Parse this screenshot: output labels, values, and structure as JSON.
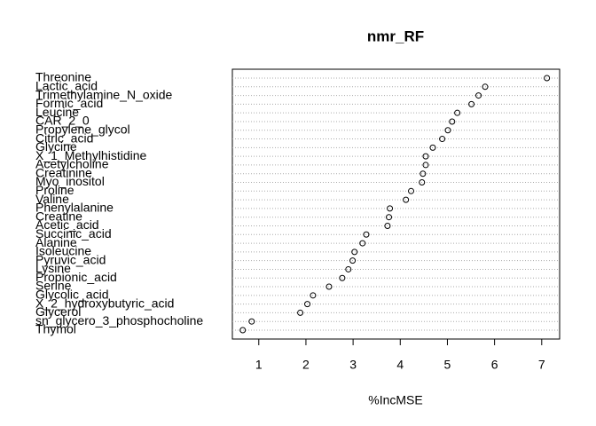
{
  "chart_data": {
    "type": "dotchart",
    "title": "nmr_RF",
    "x_label": "%IncMSE",
    "categories": [
      "Threonine",
      "Lactic_acid",
      "Trimethylamine_N_oxide",
      "Formic_acid",
      "Leucine",
      "CAR_2_0",
      "Propylene_glycol",
      "Citric_acid",
      "Glycine",
      "X_1_Methylhistidine",
      "Acetylcholine",
      "Creatinine",
      "Myo_inositol",
      "Proline",
      "Valine",
      "Phenylalanine",
      "Creatine",
      "Acetic_acid",
      "Succinic_acid",
      "Alanine",
      "Isoleucine",
      "Pyruvic_acid",
      "Lysine",
      "Propionic_acid",
      "Serine",
      "Glycolic_acid",
      "X_2_hydroxybutyric_acid",
      "Glycerol",
      "sn_glycero_3_phosphocholine",
      "Thymol"
    ],
    "values": [
      7.11,
      5.8,
      5.66,
      5.51,
      5.21,
      5.1,
      5.01,
      4.89,
      4.69,
      4.54,
      4.54,
      4.48,
      4.46,
      4.23,
      4.12,
      3.78,
      3.76,
      3.73,
      3.28,
      3.2,
      3.03,
      2.99,
      2.9,
      2.77,
      2.49,
      2.15,
      2.03,
      1.88,
      0.85,
      0.66
    ],
    "xlim": [
      0.44,
      7.38
    ],
    "xticks": [
      1,
      2,
      3,
      4,
      5,
      6,
      7
    ],
    "grid": true,
    "color": "#000000"
  }
}
